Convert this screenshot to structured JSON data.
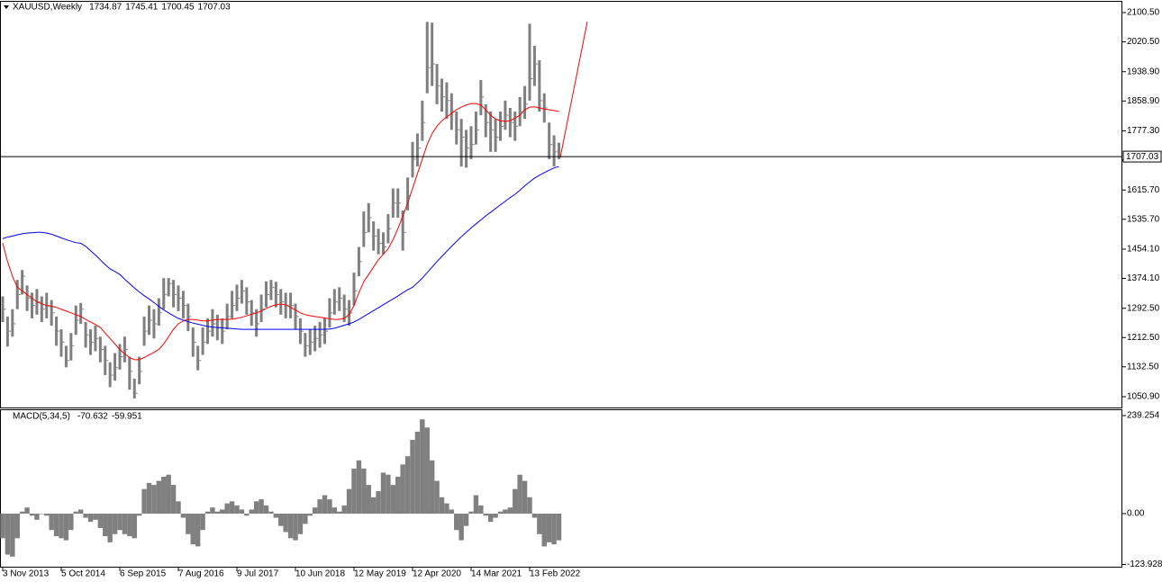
{
  "chart_data": [
    {
      "type": "ohlc",
      "title": "XAUUSD,Weekly",
      "title_values": [
        1734.87,
        1745.41,
        1700.45,
        1707.03
      ],
      "color": "#7f7f7f",
      "categories": [
        "3 Nov 2013",
        null,
        null,
        null,
        null,
        null,
        null,
        null,
        null,
        null,
        null,
        null,
        "5 Oct 2014",
        null,
        null,
        null,
        null,
        null,
        null,
        null,
        null,
        null,
        null,
        null,
        "6 Sep 2015",
        null,
        null,
        null,
        null,
        null,
        null,
        null,
        null,
        null,
        null,
        null,
        "7 Aug 2016",
        null,
        null,
        null,
        null,
        null,
        null,
        null,
        null,
        null,
        null,
        null,
        "9 Jul 2017",
        null,
        null,
        null,
        null,
        null,
        null,
        null,
        null,
        null,
        null,
        null,
        "10 Jun 2018",
        null,
        null,
        null,
        null,
        null,
        null,
        null,
        null,
        null,
        null,
        null,
        "12 May 2019",
        null,
        null,
        null,
        null,
        null,
        null,
        null,
        null,
        null,
        null,
        null,
        "12 Apr 2020",
        null,
        null,
        null,
        null,
        null,
        null,
        null,
        null,
        null,
        null,
        null,
        "14 Mar 2021",
        null,
        null,
        null,
        null,
        null,
        null,
        null,
        null,
        null,
        null,
        null,
        "13 Feb 2022",
        null,
        null,
        null,
        null,
        null,
        null
      ],
      "high": [
        1325,
        1270,
        1290,
        1370,
        1397,
        1355,
        1335,
        1345,
        1325,
        1335,
        1315,
        1270,
        1235,
        1190,
        1225,
        1300,
        1307,
        1255,
        1235,
        1245,
        1215,
        1190,
        1145,
        1170,
        1195,
        1215,
        1160,
        1100,
        1160,
        1270,
        1300,
        1290,
        1320,
        1375,
        1375,
        1370,
        1355,
        1340,
        1305,
        1240,
        1190,
        1240,
        1265,
        1290,
        1275,
        1265,
        1305,
        1340,
        1357,
        1370,
        1350,
        1315,
        1290,
        1330,
        1366,
        1370,
        1365,
        1345,
        1335,
        1335,
        1305,
        1265,
        1225,
        1235,
        1245,
        1255,
        1265,
        1320,
        1345,
        1350,
        1330,
        1315,
        1390,
        1460,
        1557,
        1580,
        1530,
        1510,
        1500,
        1550,
        1620,
        1620,
        1560,
        1650,
        1747,
        1770,
        1860,
        2075,
        2073,
        1960,
        1920,
        1910,
        1880,
        1830,
        1810,
        1780,
        1790,
        1830,
        1916,
        1850,
        1830,
        1810,
        1830,
        1860,
        1840,
        1830,
        1870,
        1900,
        2070,
        2010,
        1970,
        1880,
        1800,
        1765,
        1745
      ],
      "low": [
        1255,
        1188,
        1215,
        1290,
        1330,
        1285,
        1265,
        1275,
        1255,
        1265,
        1245,
        1190,
        1160,
        1131,
        1150,
        1220,
        1250,
        1185,
        1165,
        1175,
        1145,
        1110,
        1077,
        1095,
        1125,
        1145,
        1070,
        1046,
        1085,
        1190,
        1220,
        1210,
        1245,
        1290,
        1325,
        1295,
        1285,
        1265,
        1230,
        1160,
        1123,
        1165,
        1195,
        1215,
        1205,
        1195,
        1235,
        1265,
        1285,
        1305,
        1275,
        1245,
        1215,
        1255,
        1295,
        1315,
        1295,
        1275,
        1265,
        1265,
        1235,
        1195,
        1160,
        1165,
        1175,
        1185,
        1195,
        1240,
        1275,
        1285,
        1255,
        1245,
        1300,
        1380,
        1460,
        1500,
        1450,
        1440,
        1440,
        1470,
        1540,
        1540,
        1450,
        1560,
        1650,
        1680,
        1750,
        1880,
        1900,
        1850,
        1830,
        1810,
        1780,
        1740,
        1680,
        1677,
        1700,
        1740,
        1820,
        1760,
        1720,
        1720,
        1750,
        1780,
        1760,
        1750,
        1790,
        1810,
        1860,
        1900,
        1830,
        1800,
        1700,
        1680,
        1700
      ],
      "close": [
        1290,
        1230,
        1250,
        1330,
        1380,
        1320,
        1300,
        1310,
        1290,
        1300,
        1280,
        1230,
        1200,
        1150,
        1190,
        1260,
        1290,
        1220,
        1200,
        1210,
        1180,
        1150,
        1110,
        1130,
        1160,
        1180,
        1120,
        1060,
        1120,
        1230,
        1260,
        1250,
        1280,
        1330,
        1360,
        1330,
        1320,
        1300,
        1270,
        1200,
        1150,
        1200,
        1230,
        1250,
        1240,
        1230,
        1270,
        1300,
        1320,
        1340,
        1310,
        1280,
        1250,
        1290,
        1330,
        1350,
        1330,
        1310,
        1300,
        1300,
        1270,
        1230,
        1190,
        1200,
        1210,
        1220,
        1230,
        1280,
        1310,
        1320,
        1290,
        1280,
        1340,
        1420,
        1500,
        1540,
        1490,
        1470,
        1460,
        1510,
        1580,
        1580,
        1500,
        1600,
        1700,
        1730,
        1800,
        1950,
        1960,
        1900,
        1870,
        1860,
        1830,
        1780,
        1760,
        1730,
        1740,
        1780,
        1870,
        1800,
        1780,
        1760,
        1790,
        1820,
        1800,
        1790,
        1830,
        1850,
        1920,
        1960,
        1860,
        1840,
        1740,
        1720,
        1707
      ],
      "ma": [
        {
          "color": "#ff0000",
          "values": [
            1471,
            1420,
            1380,
            1350,
            1340,
            1330,
            1320,
            1310,
            1305,
            1300,
            1298,
            1295,
            1290,
            1285,
            1280,
            1275,
            1270,
            1262,
            1255,
            1248,
            1240,
            1225,
            1210,
            1195,
            1180,
            1168,
            1158,
            1152,
            1152,
            1158,
            1165,
            1172,
            1180,
            1195,
            1215,
            1235,
            1250,
            1258,
            1262,
            1262,
            1260,
            1258,
            1258,
            1260,
            1262,
            1262,
            1262,
            1263,
            1265,
            1268,
            1272,
            1276,
            1280,
            1285,
            1292,
            1298,
            1302,
            1304,
            1302,
            1295,
            1288,
            1280,
            1275,
            1272,
            1270,
            1268,
            1266,
            1264,
            1262,
            1262,
            1265,
            1275,
            1300,
            1335,
            1365,
            1385,
            1405,
            1425,
            1440,
            1455,
            1480,
            1510,
            1545,
            1580,
            1620,
            1660,
            1700,
            1740,
            1770,
            1790,
            1805,
            1815,
            1825,
            1835,
            1842,
            1848,
            1852,
            1852,
            1848,
            1835,
            1820,
            1810,
            1805,
            1803,
            1805,
            1812,
            1820,
            1835,
            1842,
            1843,
            1840,
            1837,
            1835,
            1833,
            1830
          ]
        },
        {
          "color": "#0000ff",
          "values": [
            1483,
            1487,
            1490,
            1493,
            1496,
            1498,
            1499,
            1500,
            1500,
            1498,
            1495,
            1490,
            1485,
            1480,
            1476,
            1472,
            1470,
            1462,
            1450,
            1438,
            1425,
            1412,
            1400,
            1393,
            1385,
            1372,
            1360,
            1348,
            1337,
            1327,
            1318,
            1308,
            1298,
            1288,
            1280,
            1272,
            1265,
            1260,
            1256,
            1252,
            1249,
            1246,
            1243,
            1241,
            1240,
            1239,
            1238,
            1237,
            1236,
            1235,
            1235,
            1235,
            1235,
            1235,
            1235,
            1235,
            1235,
            1235,
            1235,
            1235,
            1235,
            1235,
            1235,
            1235,
            1235,
            1235,
            1235,
            1236,
            1238,
            1242,
            1246,
            1250,
            1255,
            1262,
            1270,
            1278,
            1286,
            1294,
            1302,
            1310,
            1318,
            1326,
            1335,
            1343,
            1350,
            1362,
            1375,
            1390,
            1405,
            1420,
            1434,
            1448,
            1462,
            1475,
            1488,
            1500,
            1512,
            1523,
            1534,
            1545,
            1555,
            1565,
            1575,
            1585,
            1595,
            1604,
            1615,
            1627,
            1638,
            1648,
            1656,
            1663,
            1670,
            1676,
            1680
          ]
        }
      ],
      "current_price": 1707.03,
      "ylim": [
        1021.4,
        2130.0
      ],
      "yticks": [
        {
          "value": 2100.5,
          "label": "2100.50"
        },
        {
          "value": 2020.5,
          "label": "2020.50"
        },
        {
          "value": 1938.9,
          "label": "1938.90"
        },
        {
          "value": 1858.9,
          "label": "1858.90"
        },
        {
          "value": 1777.3,
          "label": "1777.30"
        },
        {
          "value": 1697.3,
          "label": "1697.30"
        },
        {
          "value": 1615.7,
          "label": "1615.70"
        },
        {
          "value": 1535.7,
          "label": "1535.70"
        },
        {
          "value": 1454.1,
          "label": "1454.10"
        },
        {
          "value": 1374.1,
          "label": "1374.10"
        },
        {
          "value": 1292.5,
          "label": "1292.50"
        },
        {
          "value": 1212.5,
          "label": "1212.50"
        },
        {
          "value": 1132.5,
          "label": "1132.50"
        },
        {
          "value": 1050.9,
          "label": "1050.90"
        }
      ]
    },
    {
      "type": "bar",
      "title": "MACD(5,34,5)",
      "title_values": [
        -70.632,
        -59.951
      ],
      "color": "#808080",
      "values": [
        -60,
        -100,
        -105,
        -60,
        5,
        15,
        -5,
        -15,
        0,
        -5,
        -40,
        -55,
        -60,
        -65,
        -40,
        5,
        10,
        -10,
        -20,
        -15,
        -35,
        -55,
        -70,
        -50,
        -40,
        -50,
        -55,
        -60,
        -5,
        60,
        75,
        70,
        80,
        90,
        95,
        70,
        30,
        -10,
        -50,
        -75,
        -80,
        -40,
        5,
        15,
        5,
        10,
        25,
        30,
        20,
        10,
        -5,
        10,
        30,
        35,
        20,
        5,
        -10,
        -30,
        -45,
        -60,
        -65,
        -50,
        -25,
        -5,
        15,
        35,
        45,
        35,
        15,
        5,
        20,
        60,
        110,
        130,
        110,
        70,
        40,
        55,
        100,
        95,
        70,
        90,
        120,
        140,
        180,
        200,
        230,
        210,
        130,
        80,
        40,
        25,
        10,
        -40,
        -65,
        -30,
        5,
        45,
        20,
        -5,
        -20,
        -10,
        5,
        10,
        15,
        60,
        95,
        80,
        40,
        -10,
        -50,
        -80,
        -70,
        -75,
        -65
      ],
      "ylim": [
        -129.5,
        252.4
      ],
      "yticks": [
        239.254,
        {
          "value": 0,
          "label": "0.00"
        },
        -123.928
      ]
    }
  ]
}
